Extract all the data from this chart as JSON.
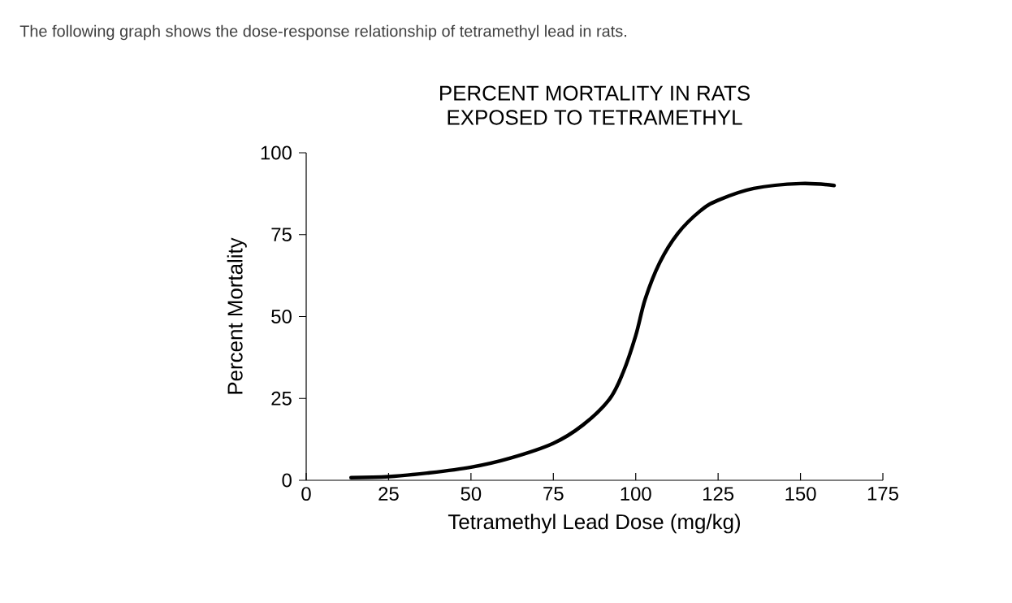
{
  "chart_data": {
    "type": "line",
    "title": "PERCENT MORTALITY IN RATS\nEXPOSED TO TETRAMETHYL",
    "annotations": [
      "The following graph shows the dose-response relationship of tetramethyl lead in rats."
    ],
    "xlabel": "Tetramethyl Lead Dose (mg/kg)",
    "ylabel": "Percent Mortality",
    "xlim": [
      0,
      175
    ],
    "ylim": [
      0,
      100
    ],
    "xticks": [
      0,
      25,
      50,
      75,
      100,
      125,
      150,
      175
    ],
    "yticks": [
      0,
      25,
      50,
      75,
      100
    ],
    "grid": false,
    "marker": "none",
    "line_style": "solid",
    "series": [
      {
        "color": "#000000",
        "x": [
          13.6,
          25,
          36.7,
          50,
          62,
          75,
          84,
          92,
          96.2,
          100,
          102.9,
          107.3,
          112.8,
          119.4,
          125,
          135.8,
          150,
          160.2
        ],
        "values": [
          0.8,
          1.1,
          2.2,
          4.0,
          6.8,
          11.3,
          16.9,
          24.7,
          33.0,
          44.2,
          55.4,
          66.5,
          75.4,
          82.1,
          85.5,
          89.1,
          90.6,
          90.0
        ]
      }
    ]
  }
}
